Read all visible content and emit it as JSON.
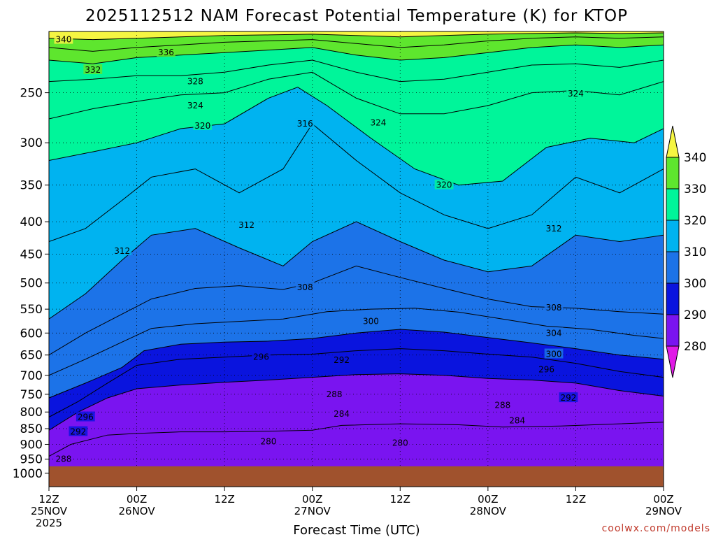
{
  "chart_data": {
    "type": "heatmap",
    "title": "2025112512 NAM Forecast Potential Temperature (K) for KTOP",
    "xlabel": "Forecast Time (UTC)",
    "ylabel": "",
    "credit": "coolwx.com/models",
    "y_scale": "log-pressure (hPa, inverted)",
    "ylim": [
      1050,
      200
    ],
    "y_ticks": [
      "250",
      "300",
      "350",
      "400",
      "450",
      "500",
      "550",
      "600",
      "650",
      "700",
      "750",
      "800",
      "850",
      "900",
      "950",
      "1000"
    ],
    "x_ticks": [
      {
        "time": "12Z",
        "date": "25NOV",
        "year": "2025",
        "hours": 0
      },
      {
        "time": "00Z",
        "date": "26NOV",
        "year": "",
        "hours": 12
      },
      {
        "time": "12Z",
        "date": "",
        "year": "",
        "hours": 24
      },
      {
        "time": "00Z",
        "date": "27NOV",
        "year": "",
        "hours": 36
      },
      {
        "time": "12Z",
        "date": "",
        "year": "",
        "hours": 48
      },
      {
        "time": "00Z",
        "date": "28NOV",
        "year": "",
        "hours": 60
      },
      {
        "time": "12Z",
        "date": "",
        "year": "",
        "hours": 72
      },
      {
        "time": "00Z",
        "date": "29NOV",
        "year": "",
        "hours": 84
      }
    ],
    "grid": true,
    "colorbar": {
      "levels": [
        "340",
        "330",
        "320",
        "310",
        "300",
        "290",
        "280"
      ],
      "bands": [
        {
          "min": 340,
          "color": "#f5f542"
        },
        {
          "min": 330,
          "color": "#5ee62e"
        },
        {
          "min": 320,
          "color": "#00f59a"
        },
        {
          "min": 310,
          "color": "#00b3f0"
        },
        {
          "min": 300,
          "color": "#1c73e8"
        },
        {
          "min": 290,
          "color": "#0a14de"
        },
        {
          "min": 280,
          "color": "#7a14f0"
        },
        {
          "min": 0,
          "color": "#e01ae6"
        }
      ]
    },
    "ground_color": "#a0522d",
    "isentropes": [
      {
        "theta": 288,
        "points": [
          [
            0,
            940
          ],
          [
            3,
            900
          ],
          [
            8,
            870
          ],
          [
            12,
            865
          ],
          [
            18,
            860
          ],
          [
            24,
            860
          ],
          [
            30,
            858
          ],
          [
            36,
            855
          ],
          [
            40,
            840
          ],
          [
            48,
            835
          ],
          [
            56,
            838
          ],
          [
            62,
            845
          ],
          [
            70,
            842
          ],
          [
            78,
            835
          ],
          [
            84,
            830
          ]
        ]
      },
      {
        "theta": 292,
        "points": [
          [
            0,
            855
          ],
          [
            4,
            800
          ],
          [
            8,
            760
          ],
          [
            12,
            735
          ],
          [
            18,
            725
          ],
          [
            24,
            718
          ],
          [
            30,
            712
          ],
          [
            36,
            705
          ],
          [
            42,
            698
          ],
          [
            48,
            696
          ],
          [
            54,
            700
          ],
          [
            60,
            708
          ],
          [
            66,
            712
          ],
          [
            72,
            720
          ],
          [
            78,
            740
          ],
          [
            84,
            755
          ]
        ]
      },
      {
        "theta": 296,
        "points": [
          [
            0,
            815
          ],
          [
            4,
            770
          ],
          [
            8,
            720
          ],
          [
            12,
            675
          ],
          [
            18,
            660
          ],
          [
            24,
            655
          ],
          [
            30,
            650
          ],
          [
            36,
            648
          ],
          [
            42,
            640
          ],
          [
            48,
            635
          ],
          [
            54,
            640
          ],
          [
            60,
            648
          ],
          [
            66,
            655
          ],
          [
            72,
            670
          ],
          [
            78,
            690
          ],
          [
            84,
            705
          ]
        ]
      },
      {
        "theta": 300,
        "points": [
          [
            0,
            760
          ],
          [
            5,
            720
          ],
          [
            10,
            680
          ],
          [
            13,
            640
          ],
          [
            18,
            625
          ],
          [
            24,
            620
          ],
          [
            30,
            618
          ],
          [
            36,
            612
          ],
          [
            42,
            600
          ],
          [
            48,
            592
          ],
          [
            54,
            598
          ],
          [
            60,
            610
          ],
          [
            66,
            622
          ],
          [
            72,
            635
          ],
          [
            78,
            650
          ],
          [
            84,
            660
          ]
        ]
      },
      {
        "theta": 304,
        "points": [
          [
            0,
            700
          ],
          [
            5,
            660
          ],
          [
            10,
            620
          ],
          [
            14,
            590
          ],
          [
            20,
            580
          ],
          [
            26,
            575
          ],
          [
            32,
            570
          ],
          [
            38,
            555
          ],
          [
            44,
            550
          ],
          [
            50,
            548
          ],
          [
            56,
            556
          ],
          [
            62,
            570
          ],
          [
            68,
            585
          ],
          [
            74,
            592
          ],
          [
            80,
            605
          ],
          [
            84,
            612
          ]
        ]
      },
      {
        "theta": 308,
        "points": [
          [
            0,
            650
          ],
          [
            5,
            600
          ],
          [
            10,
            560
          ],
          [
            14,
            530
          ],
          [
            20,
            510
          ],
          [
            26,
            505
          ],
          [
            32,
            512
          ],
          [
            36,
            500
          ],
          [
            42,
            470
          ],
          [
            48,
            490
          ],
          [
            54,
            510
          ],
          [
            60,
            530
          ],
          [
            66,
            545
          ],
          [
            72,
            548
          ],
          [
            78,
            555
          ],
          [
            84,
            560
          ]
        ]
      },
      {
        "theta": 312,
        "points": [
          [
            0,
            570
          ],
          [
            5,
            520
          ],
          [
            10,
            460
          ],
          [
            14,
            420
          ],
          [
            20,
            410
          ],
          [
            26,
            440
          ],
          [
            32,
            470
          ],
          [
            36,
            430
          ],
          [
            42,
            400
          ],
          [
            48,
            430
          ],
          [
            54,
            460
          ],
          [
            60,
            480
          ],
          [
            66,
            470
          ],
          [
            72,
            420
          ],
          [
            78,
            430
          ],
          [
            84,
            420
          ]
        ]
      },
      {
        "theta": 316,
        "points": [
          [
            0,
            430
          ],
          [
            5,
            410
          ],
          [
            10,
            370
          ],
          [
            14,
            340
          ],
          [
            20,
            330
          ],
          [
            26,
            360
          ],
          [
            32,
            330
          ],
          [
            36,
            280
          ],
          [
            42,
            320
          ],
          [
            48,
            360
          ],
          [
            54,
            390
          ],
          [
            60,
            410
          ],
          [
            66,
            390
          ],
          [
            72,
            340
          ],
          [
            78,
            360
          ],
          [
            84,
            330
          ]
        ]
      },
      {
        "theta": 320,
        "points": [
          [
            0,
            320
          ],
          [
            6,
            310
          ],
          [
            12,
            300
          ],
          [
            18,
            285
          ],
          [
            24,
            280
          ],
          [
            30,
            255
          ],
          [
            34,
            245
          ],
          [
            38,
            262
          ],
          [
            44,
            295
          ],
          [
            50,
            330
          ],
          [
            56,
            350
          ],
          [
            62,
            345
          ],
          [
            68,
            305
          ],
          [
            74,
            295
          ],
          [
            80,
            300
          ],
          [
            84,
            285
          ]
        ]
      },
      {
        "theta": 324,
        "points": [
          [
            0,
            275
          ],
          [
            6,
            265
          ],
          [
            12,
            258
          ],
          [
            18,
            252
          ],
          [
            24,
            250
          ],
          [
            30,
            238
          ],
          [
            36,
            232
          ],
          [
            42,
            255
          ],
          [
            48,
            270
          ],
          [
            54,
            270
          ],
          [
            60,
            262
          ],
          [
            66,
            250
          ],
          [
            72,
            248
          ],
          [
            78,
            252
          ],
          [
            84,
            240
          ]
        ]
      },
      {
        "theta": 328,
        "points": [
          [
            0,
            240
          ],
          [
            6,
            238
          ],
          [
            12,
            235
          ],
          [
            18,
            235
          ],
          [
            24,
            232
          ],
          [
            30,
            226
          ],
          [
            36,
            222
          ],
          [
            42,
            232
          ],
          [
            48,
            240
          ],
          [
            54,
            238
          ],
          [
            60,
            232
          ],
          [
            66,
            226
          ],
          [
            72,
            225
          ],
          [
            78,
            228
          ],
          [
            84,
            222
          ]
        ]
      },
      {
        "theta": 332,
        "points": [
          [
            0,
            222
          ],
          [
            6,
            225
          ],
          [
            12,
            220
          ],
          [
            18,
            218
          ],
          [
            24,
            216
          ],
          [
            30,
            214
          ],
          [
            36,
            212
          ],
          [
            42,
            218
          ],
          [
            48,
            222
          ],
          [
            54,
            220
          ],
          [
            60,
            216
          ],
          [
            66,
            212
          ],
          [
            72,
            210
          ],
          [
            78,
            212
          ],
          [
            84,
            210
          ]
        ]
      },
      {
        "theta": 336,
        "points": [
          [
            0,
            212
          ],
          [
            6,
            215
          ],
          [
            12,
            212
          ],
          [
            18,
            210
          ],
          [
            24,
            208
          ],
          [
            30,
            207
          ],
          [
            36,
            206
          ],
          [
            42,
            209
          ],
          [
            48,
            212
          ],
          [
            54,
            210
          ],
          [
            60,
            207
          ],
          [
            66,
            205
          ],
          [
            72,
            204
          ],
          [
            78,
            205
          ],
          [
            84,
            204
          ]
        ]
      },
      {
        "theta": 340,
        "points": [
          [
            0,
            205
          ],
          [
            6,
            206
          ],
          [
            12,
            205
          ],
          [
            18,
            204
          ],
          [
            24,
            203
          ],
          [
            30,
            202.5
          ],
          [
            36,
            202
          ],
          [
            42,
            203
          ],
          [
            48,
            204
          ],
          [
            54,
            203
          ],
          [
            60,
            202
          ],
          [
            66,
            201.5
          ],
          [
            72,
            201
          ],
          [
            78,
            201.5
          ],
          [
            84,
            201
          ]
        ]
      }
    ],
    "contour_labels": [
      {
        "text": "340",
        "hours": 2,
        "p": 206
      },
      {
        "text": "332",
        "hours": 6,
        "p": 230
      },
      {
        "text": "336",
        "hours": 16,
        "p": 216
      },
      {
        "text": "328",
        "hours": 20,
        "p": 240
      },
      {
        "text": "324",
        "hours": 20,
        "p": 262
      },
      {
        "text": "320",
        "hours": 21,
        "p": 282
      },
      {
        "text": "316",
        "hours": 35,
        "p": 280
      },
      {
        "text": "324",
        "hours": 45,
        "p": 279
      },
      {
        "text": "324",
        "hours": 72,
        "p": 251
      },
      {
        "text": "320",
        "hours": 54,
        "p": 350
      },
      {
        "text": "312",
        "hours": 27,
        "p": 405
      },
      {
        "text": "312",
        "hours": 10,
        "p": 445
      },
      {
        "text": "312",
        "hours": 69,
        "p": 410
      },
      {
        "text": "308",
        "hours": 35,
        "p": 508
      },
      {
        "text": "308",
        "hours": 69,
        "p": 547
      },
      {
        "text": "304",
        "hours": 69,
        "p": 600
      },
      {
        "text": "300",
        "hours": 44,
        "p": 575
      },
      {
        "text": "300",
        "hours": 69,
        "p": 648
      },
      {
        "text": "296",
        "hours": 29,
        "p": 655
      },
      {
        "text": "296",
        "hours": 68,
        "p": 685
      },
      {
        "text": "292",
        "hours": 40,
        "p": 662
      },
      {
        "text": "292",
        "hours": 71,
        "p": 760
      },
      {
        "text": "296",
        "hours": 5,
        "p": 815
      },
      {
        "text": "292",
        "hours": 4,
        "p": 860
      },
      {
        "text": "288",
        "hours": 39,
        "p": 750
      },
      {
        "text": "288",
        "hours": 62,
        "p": 780
      },
      {
        "text": "284",
        "hours": 40,
        "p": 806
      },
      {
        "text": "284",
        "hours": 64,
        "p": 825
      },
      {
        "text": "280",
        "hours": 30,
        "p": 891
      },
      {
        "text": "280",
        "hours": 48,
        "p": 895
      },
      {
        "text": "288",
        "hours": 2,
        "p": 950
      }
    ]
  }
}
